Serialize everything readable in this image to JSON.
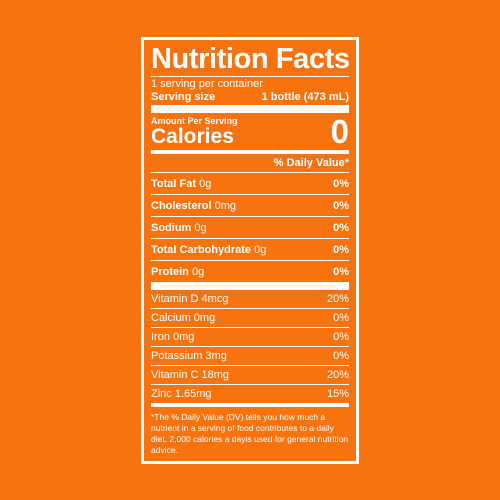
{
  "title": "Nutrition Facts",
  "servings_per_container": "1 serving per container",
  "serving_size": {
    "label": "Serving size",
    "value": "1 bottle (473 mL)"
  },
  "amount_per_serving": "Amount Per Serving",
  "calories": {
    "label": "Calories",
    "value": "0"
  },
  "daily_value_header": "% Daily Value*",
  "nutrients": [
    {
      "name": "Total Fat",
      "amount": "0g",
      "dv": "0%"
    },
    {
      "name": "Cholesterol",
      "amount": "0mg",
      "dv": "0%"
    },
    {
      "name": "Sodium",
      "amount": "0g",
      "dv": "0%"
    },
    {
      "name": "Total Carbohydrate",
      "amount": "0g",
      "dv": "0%"
    },
    {
      "name": "Protein",
      "amount": "0g",
      "dv": "0%"
    }
  ],
  "vitamins": [
    {
      "text": "Vitamin D 4mcg",
      "dv": "20%"
    },
    {
      "text": "Calcium 0mg",
      "dv": "0%"
    },
    {
      "text": "Iron 0mg",
      "dv": "0%"
    },
    {
      "text": "Potassium 3mg",
      "dv": "0%"
    },
    {
      "text": "Vitamin C 18mg",
      "dv": "20%"
    },
    {
      "text": "Zinc 1.65mg",
      "dv": "15%"
    }
  ],
  "footnote": "*The % Daily Value (DV) tells you how much a nutrient in a serving of food contributes to a daily diet. 2,000 calories a dayis used for general nutrition advice.",
  "colors": {
    "background": "#f7730f",
    "foreground": "#ffffff"
  }
}
